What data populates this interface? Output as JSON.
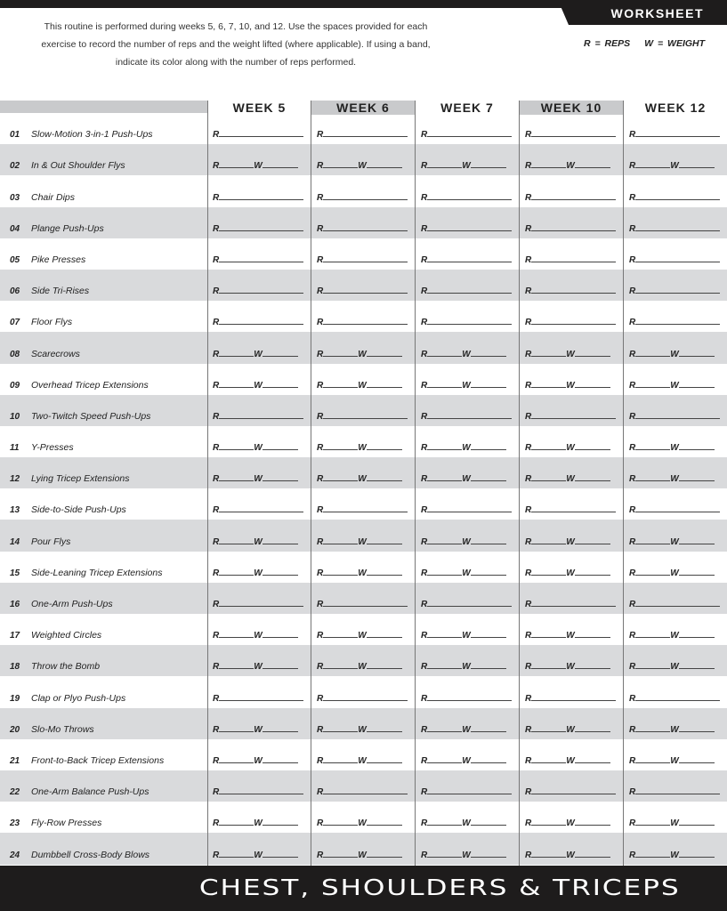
{
  "tab_label": "WORKSHEET",
  "intro": "This routine is performed during weeks 5, 6, 7, 10, and 12. Use the spaces provided for each exercise to record the number of reps and the weight lifted (where applicable). If using a band, indicate its color along with the number of reps performed.",
  "legend": {
    "reps": "R = REPS",
    "weight": "W = WEIGHT"
  },
  "weeks": [
    "WEEK 5",
    "WEEK 6",
    "WEEK 7",
    "WEEK 10",
    "WEEK 12"
  ],
  "field_labels": {
    "reps": "R",
    "weight": "W"
  },
  "exercises": [
    {
      "num": "01",
      "name": "Slow-Motion 3-in-1 Push-Ups",
      "weight": false
    },
    {
      "num": "02",
      "name": "In & Out Shoulder Flys",
      "weight": true
    },
    {
      "num": "03",
      "name": "Chair Dips",
      "weight": false
    },
    {
      "num": "04",
      "name": "Plange Push-Ups",
      "weight": false
    },
    {
      "num": "05",
      "name": "Pike Presses",
      "weight": false
    },
    {
      "num": "06",
      "name": "Side Tri-Rises",
      "weight": false
    },
    {
      "num": "07",
      "name": "Floor Flys",
      "weight": false
    },
    {
      "num": "08",
      "name": "Scarecrows",
      "weight": true
    },
    {
      "num": "09",
      "name": "Overhead Tricep Extensions",
      "weight": true
    },
    {
      "num": "10",
      "name": "Two-Twitch Speed Push-Ups",
      "weight": false
    },
    {
      "num": "11",
      "name": "Y-Presses",
      "weight": true
    },
    {
      "num": "12",
      "name": "Lying Tricep Extensions",
      "weight": true
    },
    {
      "num": "13",
      "name": "Side-to-Side Push-Ups",
      "weight": false
    },
    {
      "num": "14",
      "name": "Pour Flys",
      "weight": true
    },
    {
      "num": "15",
      "name": "Side-Leaning Tricep Extensions",
      "weight": true
    },
    {
      "num": "16",
      "name": "One-Arm Push-Ups",
      "weight": false
    },
    {
      "num": "17",
      "name": "Weighted Circles",
      "weight": true
    },
    {
      "num": "18",
      "name": "Throw the Bomb",
      "weight": true
    },
    {
      "num": "19",
      "name": "Clap or Plyo Push-Ups",
      "weight": false
    },
    {
      "num": "20",
      "name": "Slo-Mo Throws",
      "weight": true
    },
    {
      "num": "21",
      "name": "Front-to-Back Tricep Extensions",
      "weight": true
    },
    {
      "num": "22",
      "name": "One-Arm Balance Push-Ups",
      "weight": false
    },
    {
      "num": "23",
      "name": "Fly-Row Presses",
      "weight": true
    },
    {
      "num": "24",
      "name": "Dumbbell Cross-Body Blows",
      "weight": true
    }
  ],
  "footer_title": "CHEST, SHOULDERS & TRICEPS"
}
